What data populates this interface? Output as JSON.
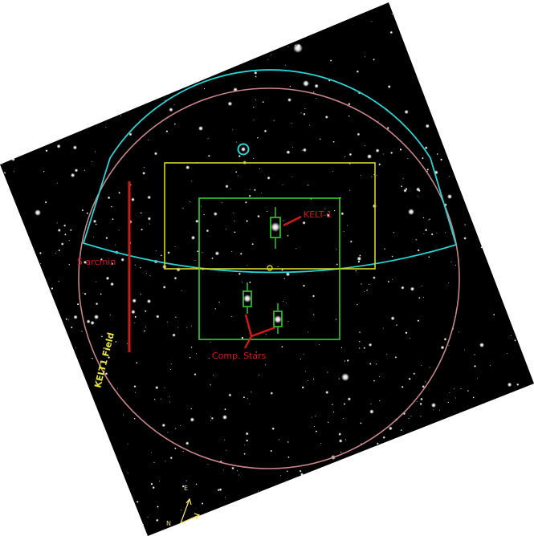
{
  "colors": {
    "background": "#ffffff",
    "sky": "#000000",
    "field_circle": "#c9868a",
    "field_outline": "#29d3d3",
    "wide_box": "#d4d42a",
    "inner_box": "#2fd32f",
    "annotation_red": "#d21a1a",
    "field_label": "#e8e83a",
    "compass": "#f0e060"
  },
  "labels": {
    "target": "KELT-1",
    "scale_bar": "5 arcmin",
    "comparison": "Comp. Stars",
    "field": "KELT1 Field",
    "compass_east": "E",
    "compass_north": "N"
  }
}
